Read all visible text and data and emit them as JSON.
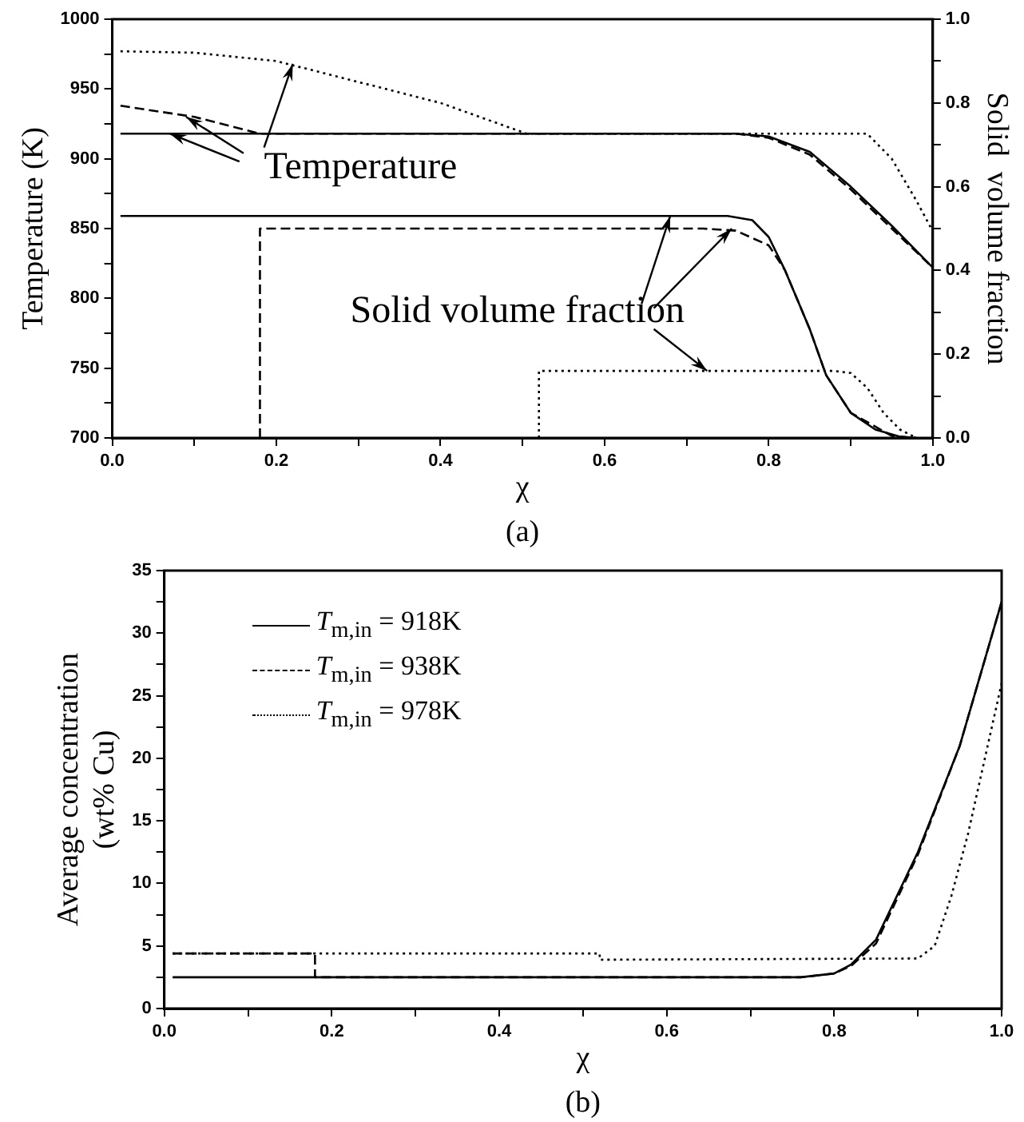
{
  "chart_data": [
    {
      "type": "line",
      "xlabel": "χ",
      "ylabel": "Temperature (K)",
      "y2label": "Solid  volume fraction",
      "xlim": [
        0,
        1
      ],
      "xticks": [
        {
          "value": 0,
          "label": "0.0"
        },
        {
          "value": 0.1,
          "label": null
        },
        {
          "value": 0.2,
          "label": "0.2"
        },
        {
          "value": 0.3,
          "label": null
        },
        {
          "value": 0.4,
          "label": "0.4"
        },
        {
          "value": 0.5,
          "label": null
        },
        {
          "value": 0.6,
          "label": "0.6"
        },
        {
          "value": 0.7,
          "label": null
        },
        {
          "value": 0.8,
          "label": "0.8"
        },
        {
          "value": 0.9,
          "label": null
        },
        {
          "value": 1,
          "label": "1.0"
        }
      ],
      "ylim": [
        700,
        1000
      ],
      "yticks": [
        700,
        {
          "value": 725,
          "label": null
        },
        750,
        {
          "value": 775,
          "label": null
        },
        800,
        {
          "value": 825,
          "label": null
        },
        850,
        {
          "value": 875,
          "label": null
        },
        900,
        {
          "value": 925,
          "label": null
        },
        950,
        {
          "value": 975,
          "label": null
        },
        1000
      ],
      "y2lim": [
        0,
        1
      ],
      "y2ticks": [
        {
          "value": 0,
          "label": "0.0"
        },
        {
          "value": 0.1,
          "label": null
        },
        {
          "value": 0.2,
          "label": "0.2"
        },
        {
          "value": 0.3,
          "label": null
        },
        {
          "value": 0.4,
          "label": "0.4"
        },
        {
          "value": 0.5,
          "label": null
        },
        {
          "value": 0.6,
          "label": "0.6"
        },
        {
          "value": 0.7,
          "label": null
        },
        {
          "value": 0.8,
          "label": "0.8"
        },
        {
          "value": 0.9,
          "label": null
        },
        {
          "value": 1,
          "label": "1.0"
        }
      ],
      "grid": false,
      "legend": false,
      "marker": "none",
      "series": [
        {
          "color": "#000000",
          "line_style": "solid",
          "x": [
            0.01,
            0.76,
            0.8,
            0.85,
            0.9,
            0.95,
            1.0
          ],
          "values": [
            918,
            918,
            916,
            905,
            880,
            852,
            822
          ]
        },
        {
          "color": "#000000",
          "line_style": "dashed",
          "x": [
            0.01,
            0.1,
            0.18,
            0.76,
            0.8,
            0.85,
            0.9,
            0.95,
            1.0
          ],
          "values": [
            938,
            930,
            918,
            918,
            915,
            903,
            878,
            850,
            822
          ]
        },
        {
          "color": "#000000",
          "line_style": "dotted",
          "x": [
            0.01,
            0.1,
            0.2,
            0.3,
            0.4,
            0.505,
            0.92,
            0.95,
            0.98,
            1.0
          ],
          "values": [
            977,
            976,
            970,
            955,
            940,
            918,
            918,
            900,
            870,
            848
          ]
        },
        {
          "color": "#000000",
          "line_style": "solid",
          "axis": "y2",
          "x": [
            0.01,
            0.75,
            0.78,
            0.8,
            0.82,
            0.85,
            0.87,
            0.9,
            0.93,
            0.96,
            0.98
          ],
          "values": [
            0.53,
            0.53,
            0.52,
            0.48,
            0.4,
            0.26,
            0.15,
            0.06,
            0.02,
            0.003,
            0
          ]
        },
        {
          "color": "#000000",
          "line_style": "dashed",
          "axis": "y2",
          "x": [
            0.18,
            0.18,
            0.72,
            0.76,
            0.8,
            0.82,
            0.85,
            0.87,
            0.9,
            0.95,
            0.98
          ],
          "values": [
            0,
            0.5,
            0.5,
            0.495,
            0.46,
            0.4,
            0.26,
            0.15,
            0.06,
            0.005,
            0
          ]
        },
        {
          "color": "#000000",
          "line_style": "dotted",
          "axis": "y2",
          "x": [
            0.52,
            0.52,
            0.88,
            0.9,
            0.92,
            0.94,
            0.96,
            0.98
          ],
          "values": [
            0,
            0.16,
            0.16,
            0.155,
            0.12,
            0.06,
            0.02,
            0
          ]
        }
      ],
      "annotations": [
        {
          "text": "Temperature",
          "x": 0.22,
          "y": 968
        },
        {
          "text": "Solid volume fraction",
          "x": 0.68,
          "y": 859
        },
        "(a)"
      ]
    },
    {
      "type": "line",
      "xlabel": "χ",
      "ylabel": "Average concentration\n(wt% Cu)",
      "xlim": [
        0,
        1
      ],
      "xticks": [
        {
          "value": 0,
          "label": "0.0"
        },
        {
          "value": 0.1,
          "label": null
        },
        {
          "value": 0.2,
          "label": "0.2"
        },
        {
          "value": 0.3,
          "label": null
        },
        {
          "value": 0.4,
          "label": "0.4"
        },
        {
          "value": 0.5,
          "label": null
        },
        {
          "value": 0.6,
          "label": "0.6"
        },
        {
          "value": 0.7,
          "label": null
        },
        {
          "value": 0.8,
          "label": "0.8"
        },
        {
          "value": 0.9,
          "label": null
        },
        {
          "value": 1,
          "label": "1.0"
        }
      ],
      "ylim": [
        0,
        35
      ],
      "yticks": [
        0,
        {
          "value": 2.5,
          "label": null
        },
        5,
        {
          "value": 7.5,
          "label": null
        },
        10,
        {
          "value": 12.5,
          "label": null
        },
        15,
        {
          "value": 17.5,
          "label": null
        },
        20,
        {
          "value": 22.5,
          "label": null
        },
        25,
        {
          "value": 27.5,
          "label": null
        },
        30,
        {
          "value": 32.5,
          "label": null
        },
        35
      ],
      "grid": false,
      "legend": "top left",
      "marker": "none",
      "series": [
        {
          "name": "T$_{m,in}$ = 918K",
          "color": "#000000",
          "line_style": "solid",
          "x": [
            0.01,
            0.76,
            0.8,
            0.82,
            0.85,
            0.9,
            0.95,
            1.0
          ],
          "values": [
            2.5,
            2.5,
            2.8,
            3.5,
            5.5,
            12.5,
            21,
            32.5
          ]
        },
        {
          "name": "T$_{m,in}$ = 938K",
          "color": "#000000",
          "line_style": "dashed",
          "x": [
            0.01,
            0.18,
            0.18,
            0.76,
            0.8,
            0.82,
            0.85,
            0.9,
            0.95,
            1.0
          ],
          "values": [
            4.4,
            4.4,
            2.5,
            2.5,
            2.8,
            3.4,
            5.2,
            12.3,
            21,
            32.5
          ]
        },
        {
          "name": "T$_{m,in}$ = 978K",
          "color": "#000000",
          "line_style": "dotted",
          "x": [
            0.01,
            0.52,
            0.52,
            0.9,
            0.92,
            0.94,
            0.96,
            0.98,
            1.0
          ],
          "values": [
            4.4,
            4.4,
            3.9,
            4.0,
            5,
            9,
            14,
            20,
            26
          ]
        }
      ],
      "annotations": [
        "(b)"
      ]
    }
  ]
}
